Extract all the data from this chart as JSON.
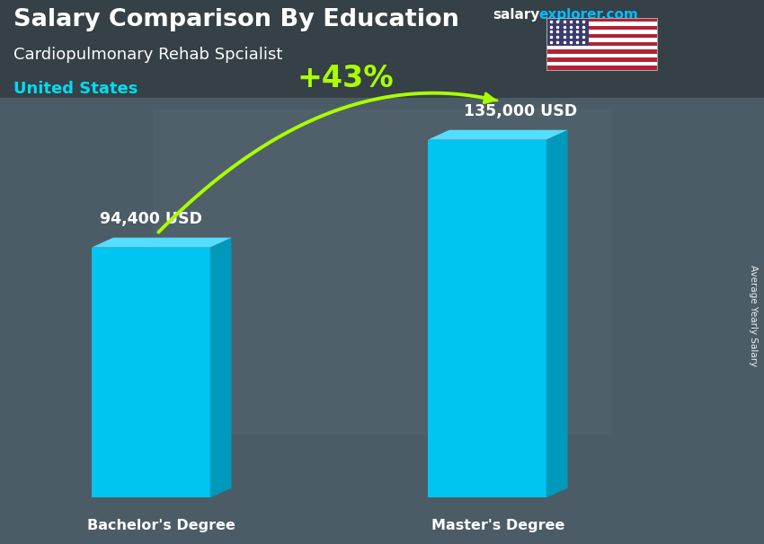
{
  "title_bold": "Salary Comparison By Education",
  "subtitle": "Cardiopulmonary Rehab Spcialist",
  "location": "United States",
  "watermark_salary": "salary",
  "watermark_rest": "explorer.com",
  "side_label": "Average Yearly Salary",
  "categories": [
    "Bachelor's Degree",
    "Master's Degree"
  ],
  "values": [
    94400,
    135000
  ],
  "value_labels": [
    "94,400 USD",
    "135,000 USD"
  ],
  "pct_change": "+43%",
  "bar_face_color": "#00C5F0",
  "bar_side_color": "#0099BB",
  "bar_top_color": "#55DDFF",
  "bg_color": "#5a6a72",
  "title_color": "#FFFFFF",
  "subtitle_color": "#FFFFFF",
  "location_color": "#00DDEE",
  "value_label_color": "#FFFFFF",
  "category_label_color": "#FFFFFF",
  "pct_color": "#AAFF00",
  "arrow_color": "#AAFF00",
  "watermark_salary_color": "#FFFFFF",
  "watermark_explorer_color": "#00BFFF",
  "figsize": [
    8.5,
    6.06
  ],
  "dpi": 100
}
